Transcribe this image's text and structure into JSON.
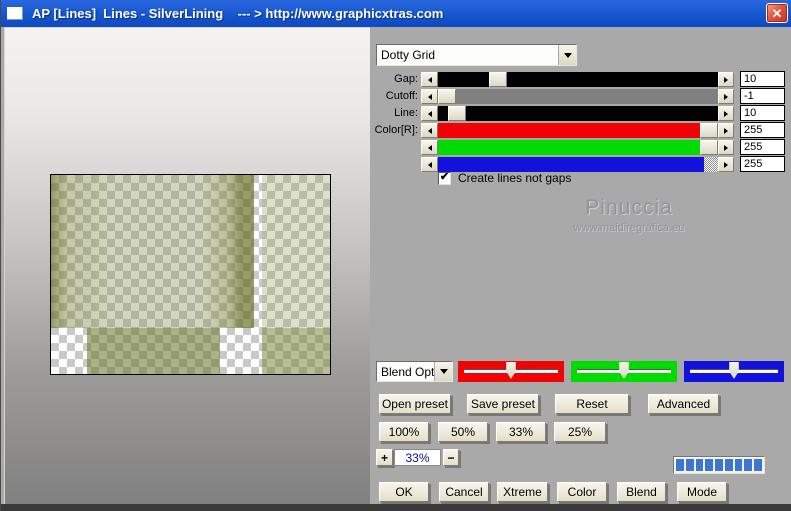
{
  "window": {
    "title": "AP [Lines]  Lines - SilverLining    --- > http://www.graphicxtras.com",
    "close_glyph": "✕"
  },
  "preset_dropdown": {
    "value": "Dotty Grid"
  },
  "params": {
    "rows": [
      {
        "label": "Gap:",
        "value": "10"
      },
      {
        "label": "Cutoff:",
        "value": "-1"
      },
      {
        "label": "Line:",
        "value": "10"
      },
      {
        "label": "Color[R]:",
        "value": "255"
      },
      {
        "label": "",
        "value": "255"
      },
      {
        "label": "",
        "value": "255"
      }
    ]
  },
  "checkbox": {
    "label": "Create lines not gaps",
    "checked": true,
    "check_glyph": "✔"
  },
  "watermark": {
    "name": "Pinuccia",
    "url": "www.maidiregrafica.eu"
  },
  "blend_dropdown": {
    "value": "Blend Opti"
  },
  "preset_buttons": [
    {
      "label": "Open preset"
    },
    {
      "label": "Save preset"
    },
    {
      "label": "Reset"
    },
    {
      "label": "Advanced"
    }
  ],
  "zoom_preset_buttons": [
    {
      "label": "100%"
    },
    {
      "label": "50%"
    },
    {
      "label": "33%"
    },
    {
      "label": "25%"
    }
  ],
  "zoom_control": {
    "plus": "+",
    "value": "33%",
    "minus": "−"
  },
  "progress": {
    "segments": 9
  },
  "action_buttons": [
    {
      "label": "OK"
    },
    {
      "label": "Cancel"
    },
    {
      "label": "Xtreme"
    },
    {
      "label": "Color"
    },
    {
      "label": "Blend"
    },
    {
      "label": "Mode"
    }
  ],
  "colors": {
    "titlebar": "#1556cf",
    "close_button": "#d9432f",
    "dialog_bg": "#a9a9a9",
    "track_gap": "#000000",
    "track_cutoff": "#808080",
    "track_line": "#000000",
    "track_red": "#ef0303",
    "track_green": "#00dc00",
    "track_blue": "#1212dc",
    "progress_segment": "#3a76d2",
    "preview_olive": "#8d9556"
  }
}
